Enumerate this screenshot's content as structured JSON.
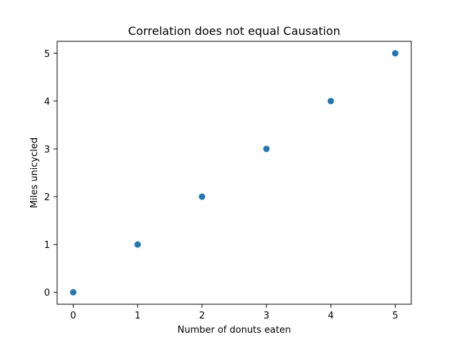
{
  "chart_data": {
    "type": "scatter",
    "title": "Correlation does not equal Causation",
    "xlabel": "Number of donuts eaten",
    "ylabel": "Miles unicycled",
    "x": [
      0,
      1,
      2,
      3,
      4,
      5
    ],
    "y": [
      0,
      1,
      2,
      3,
      4,
      5
    ],
    "xlim": [
      -0.25,
      5.25
    ],
    "ylim": [
      -0.25,
      5.25
    ],
    "xticks": [
      "0",
      "1",
      "2",
      "3",
      "4",
      "5"
    ],
    "yticks": [
      "0",
      "1",
      "2",
      "3",
      "4",
      "5"
    ],
    "grid": false,
    "marker_color": "#1f77b4"
  }
}
